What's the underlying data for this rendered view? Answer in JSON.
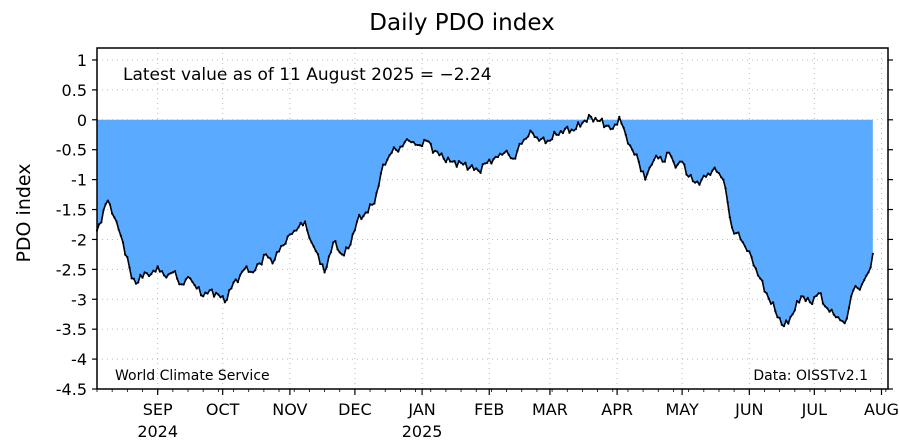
{
  "chart_data": {
    "type": "area",
    "title": "Daily PDO index",
    "ylabel": "PDO index",
    "xlabel": "",
    "ylim": [
      -4.5,
      1.2
    ],
    "xlim": [
      "2024-08-18",
      "2025-08-18"
    ],
    "y_ticks": [
      1,
      0.5,
      0,
      -0.5,
      -1,
      -1.5,
      -2,
      -2.5,
      -3,
      -3.5,
      -4,
      -4.5
    ],
    "y_tick_labels": [
      "1",
      "0.5",
      "0",
      "-0.5",
      "-1",
      "-1.5",
      "-2",
      "-2.5",
      "-3",
      "-3.5",
      "-4",
      "-4.5"
    ],
    "x_ticks": [
      {
        "date": "2024-09-15",
        "label": "SEP",
        "year": "2024"
      },
      {
        "date": "2024-10-15",
        "label": "OCT",
        "year": ""
      },
      {
        "date": "2024-11-15",
        "label": "NOV",
        "year": ""
      },
      {
        "date": "2024-12-15",
        "label": "DEC",
        "year": ""
      },
      {
        "date": "2025-01-15",
        "label": "JAN",
        "year": "2025"
      },
      {
        "date": "2025-02-15",
        "label": "FEB",
        "year": ""
      },
      {
        "date": "2025-03-15",
        "label": "MAR",
        "year": ""
      },
      {
        "date": "2025-04-15",
        "label": "APR",
        "year": ""
      },
      {
        "date": "2025-05-15",
        "label": "MAY",
        "year": ""
      },
      {
        "date": "2025-06-15",
        "label": "JUN",
        "year": ""
      },
      {
        "date": "2025-07-15",
        "label": "JUL",
        "year": ""
      },
      {
        "date": "2025-08-15",
        "label": "AUG",
        "year": ""
      }
    ],
    "grid": true,
    "fill_color": "#5aabff",
    "line_color": "#000000",
    "series": [
      {
        "x": [
          "2024-08-18",
          "2024-08-23",
          "2024-08-27",
          "2024-08-30",
          "2024-09-03",
          "2024-09-06",
          "2024-09-09",
          "2024-09-12",
          "2024-09-15",
          "2024-09-18",
          "2024-09-22",
          "2024-09-26",
          "2024-09-30",
          "2024-10-03",
          "2024-10-06",
          "2024-10-09",
          "2024-10-13",
          "2024-10-16",
          "2024-10-20",
          "2024-10-23",
          "2024-10-26",
          "2024-10-29",
          "2024-11-01",
          "2024-11-04",
          "2024-11-07",
          "2024-11-10",
          "2024-11-14",
          "2024-11-18",
          "2024-11-22",
          "2024-11-25",
          "2024-11-28",
          "2024-12-01",
          "2024-12-05",
          "2024-12-09",
          "2024-12-12",
          "2024-12-16",
          "2024-12-20",
          "2024-12-24",
          "2024-12-28",
          "2025-01-01",
          "2025-01-05",
          "2025-01-09",
          "2025-01-13",
          "2025-01-17",
          "2025-01-21",
          "2025-01-25",
          "2025-01-29",
          "2025-02-02",
          "2025-02-06",
          "2025-02-10",
          "2025-02-14",
          "2025-02-18",
          "2025-02-22",
          "2025-02-26",
          "2025-03-02",
          "2025-03-06",
          "2025-03-10",
          "2025-03-14",
          "2025-03-18",
          "2025-03-22",
          "2025-03-26",
          "2025-03-30",
          "2025-04-03",
          "2025-04-07",
          "2025-04-10",
          "2025-04-13",
          "2025-04-16",
          "2025-04-19",
          "2025-04-22",
          "2025-04-25",
          "2025-04-28",
          "2025-05-01",
          "2025-05-03",
          "2025-05-06",
          "2025-05-09",
          "2025-05-12",
          "2025-05-15",
          "2025-05-18",
          "2025-05-21",
          "2025-05-24",
          "2025-05-27",
          "2025-05-30",
          "2025-06-03",
          "2025-06-07",
          "2025-06-11",
          "2025-06-15",
          "2025-06-19",
          "2025-06-23",
          "2025-06-27",
          "2025-07-01",
          "2025-07-05",
          "2025-07-09",
          "2025-07-13",
          "2025-07-17",
          "2025-07-21",
          "2025-07-25",
          "2025-07-29",
          "2025-08-02",
          "2025-08-06",
          "2025-08-09",
          "2025-08-11"
        ],
        "y": [
          -1.85,
          -1.35,
          -1.7,
          -2.05,
          -2.65,
          -2.72,
          -2.55,
          -2.58,
          -2.45,
          -2.6,
          -2.55,
          -2.75,
          -2.65,
          -2.82,
          -2.95,
          -2.85,
          -2.92,
          -3.05,
          -2.72,
          -2.6,
          -2.45,
          -2.55,
          -2.4,
          -2.25,
          -2.4,
          -2.2,
          -1.95,
          -1.85,
          -1.7,
          -2.05,
          -2.25,
          -2.55,
          -2.05,
          -2.25,
          -2.15,
          -1.7,
          -1.55,
          -1.4,
          -0.75,
          -0.55,
          -0.45,
          -0.35,
          -0.42,
          -0.35,
          -0.52,
          -0.65,
          -0.7,
          -0.72,
          -0.8,
          -0.85,
          -0.72,
          -0.62,
          -0.55,
          -0.65,
          -0.4,
          -0.18,
          -0.35,
          -0.35,
          -0.25,
          -0.15,
          -0.18,
          -0.05,
          0.05,
          -0.02,
          -0.1,
          -0.15,
          0.05,
          -0.25,
          -0.5,
          -0.7,
          -1.0,
          -0.75,
          -0.6,
          -0.7,
          -0.55,
          -0.8,
          -0.7,
          -0.95,
          -1.05,
          -1.0,
          -0.9,
          -0.8,
          -1.0,
          -1.8,
          -2.0,
          -2.2,
          -2.6,
          -2.9,
          -3.2,
          -3.45,
          -3.25,
          -2.95,
          -3.05,
          -2.9,
          -3.15,
          -3.3,
          -3.4,
          -2.85,
          -2.75,
          -2.55,
          -2.24
        ]
      }
    ],
    "annotations": {
      "latest": "Latest value as of 11 August 2025 = −2.24",
      "credit": "World Climate Service",
      "source": "Data: OISSTv2.1"
    }
  }
}
